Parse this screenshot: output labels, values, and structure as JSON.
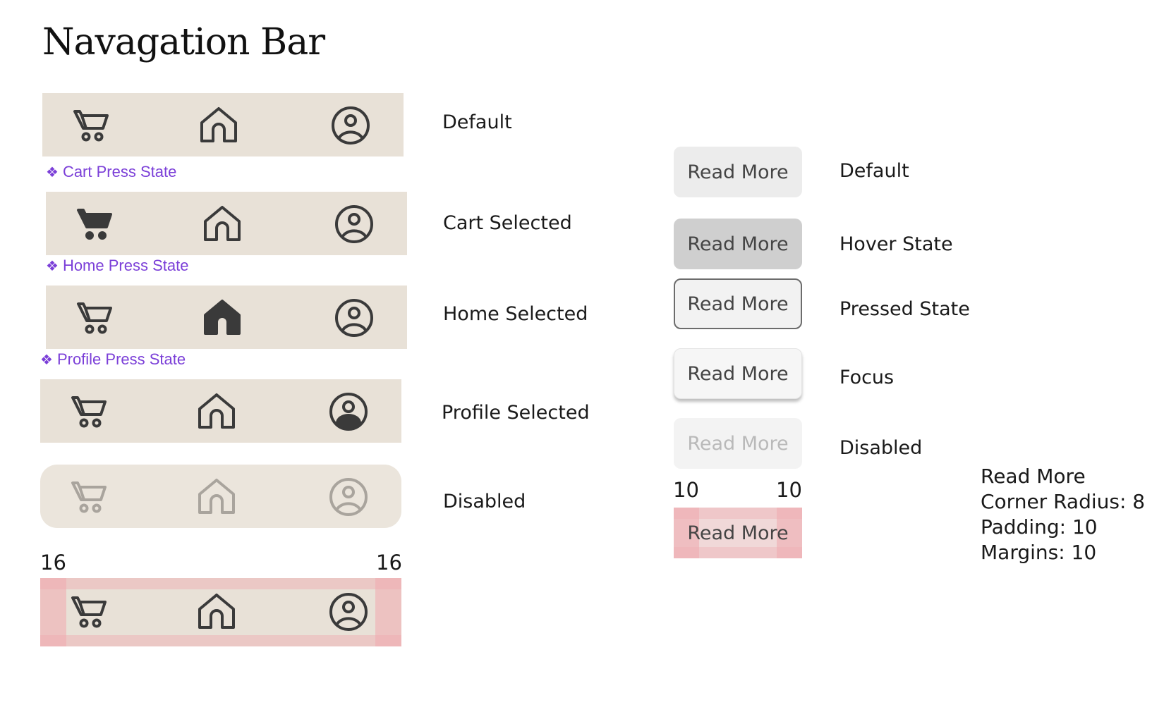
{
  "title": "Navagation Bar",
  "nav_states": [
    {
      "label": "Default"
    },
    {
      "label": "Cart Selected",
      "press_label": "Cart Press State"
    },
    {
      "label": "Home Selected",
      "press_label": "Home Press State"
    },
    {
      "label": "Profile Selected",
      "press_label": "Profile Press State"
    },
    {
      "label": "Disabled"
    }
  ],
  "nav_spec": {
    "left_padding": "16",
    "right_padding": "16"
  },
  "button_text": "Read More",
  "button_states": [
    {
      "label": "Default"
    },
    {
      "label": "Hover State"
    },
    {
      "label": "Pressed State"
    },
    {
      "label": "Focus"
    },
    {
      "label": "Disabled"
    }
  ],
  "button_spec": {
    "left_padding": "10",
    "right_padding": "10"
  },
  "button_note": {
    "line1": "Read More",
    "line2": "Corner Radius: 8",
    "line3": "Padding: 10",
    "line4": "Margins: 10"
  },
  "colors": {
    "nav_background": "#e8e1d7",
    "icon": "#3a3a3a",
    "icon_disabled": "#a9a49d",
    "press_label": "#7b3fd8",
    "spec_overlay": "#f0aaaf"
  },
  "icons": [
    "cart-icon",
    "home-icon",
    "profile-icon"
  ]
}
